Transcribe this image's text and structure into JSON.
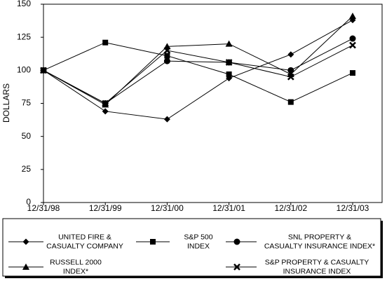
{
  "chart_data": {
    "type": "line",
    "y_label": "DOLLARS",
    "categories": [
      "12/31/98",
      "12/31/99",
      "12/31/00",
      "12/31/01",
      "12/31/02",
      "12/31/03"
    ],
    "ylim": [
      0,
      150
    ],
    "yticks": [
      0,
      25,
      50,
      75,
      100,
      125,
      150
    ],
    "series": [
      {
        "name": [
          "UNITED FIRE &",
          "CASUALTY COMPANY"
        ],
        "marker": "diamond",
        "color": "#000000",
        "values": [
          100,
          69,
          63,
          94,
          112,
          138
        ]
      },
      {
        "name": [
          "S&P 500",
          "INDEX"
        ],
        "marker": "square",
        "color": "#000000",
        "values": [
          100,
          121,
          111,
          97,
          76,
          98
        ]
      },
      {
        "name": [
          "SNL PROPERTY &",
          "CASUALTY INSURANCE INDEX*"
        ],
        "marker": "circle",
        "color": "#000000",
        "values": [
          100,
          75,
          107,
          106,
          100,
          124
        ]
      },
      {
        "name": [
          "RUSSELL 2000",
          "INDEX*"
        ],
        "marker": "triangle",
        "color": "#000000",
        "values": [
          100,
          74,
          118,
          120,
          97,
          141
        ]
      },
      {
        "name": [
          "S&P PROPERTY & CASUALTY",
          "INSURANCE INDEX"
        ],
        "marker": "x",
        "color": "#000000",
        "values": [
          100,
          75,
          115,
          106,
          95,
          119
        ]
      }
    ]
  }
}
